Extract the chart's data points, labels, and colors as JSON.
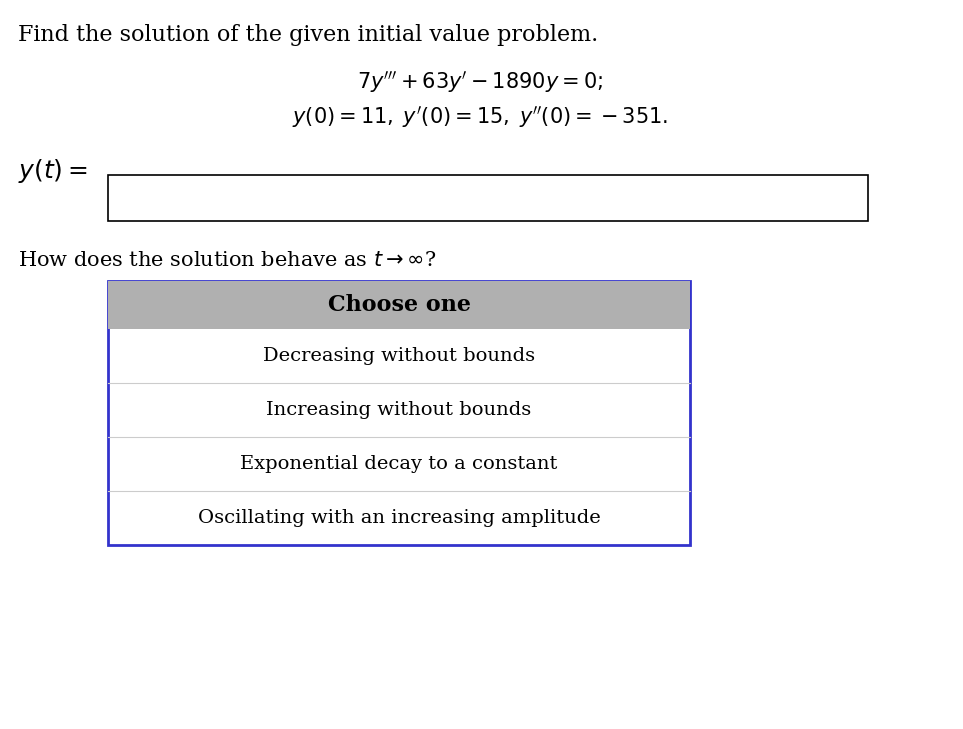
{
  "bg_color": "#ffffff",
  "title_text": "Find the solution of the given initial value problem.",
  "equation_line1": "$7y''' + 63y' - 1890y = 0;$",
  "equation_line2": "$y(0) = 11, \\; y'(0) = 15, \\; y''(0) = -351.$",
  "yt_label": "$y(t) =$",
  "question_text": "How does the solution behave as $t \\to \\infty$?",
  "dropdown_header": "Choose one",
  "dropdown_options": [
    "Decreasing without bounds",
    "Increasing without bounds",
    "Exponential decay to a constant",
    "Oscillating with an increasing amplitude"
  ],
  "header_bg": "#b0b0b0",
  "dropdown_bg": "#ffffff",
  "dropdown_border": "#3333cc",
  "input_box_color": "#000000",
  "text_color": "#000000",
  "font_size_title": 16,
  "font_size_eq": 15,
  "font_size_yt": 15,
  "font_size_question": 15,
  "font_size_dropdown": 14
}
